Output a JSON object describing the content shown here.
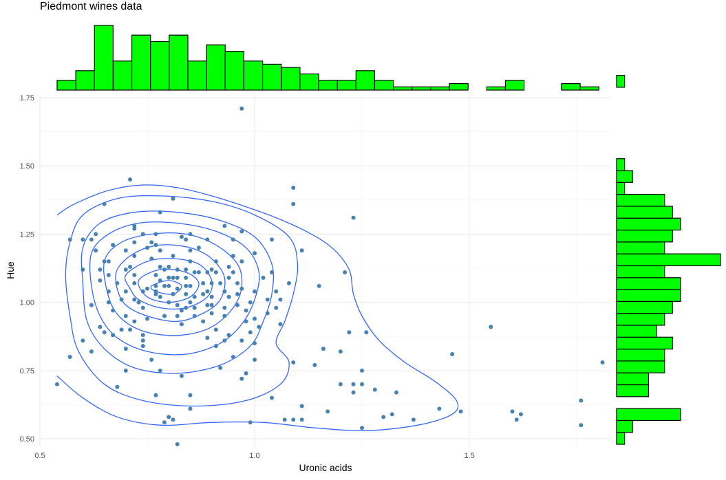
{
  "chart_data": {
    "type": "scatter",
    "title": "Piedmont wines data",
    "xlabel": "Uronic acids",
    "ylabel": "Hue",
    "xlim": [
      0.5,
      1.83
    ],
    "ylim": [
      0.47,
      1.76
    ],
    "x_ticks": [
      "0.5",
      "1.0",
      "1.5"
    ],
    "y_ticks": [
      "0.50",
      "0.75",
      "1.00",
      "1.25",
      "1.50",
      "1.75"
    ],
    "grid": true,
    "point_color": "#4682b4",
    "contour_color": "#3366ff",
    "histogram_fill": "#00ff00",
    "histogram_outline": "#000000",
    "points": [
      [
        0.54,
        0.7
      ],
      [
        0.57,
        0.8
      ],
      [
        0.57,
        1.23
      ],
      [
        0.6,
        1.23
      ],
      [
        0.6,
        0.86
      ],
      [
        0.6,
        1.12
      ],
      [
        0.62,
        0.82
      ],
      [
        0.62,
        1.23
      ],
      [
        0.63,
        1.25
      ],
      [
        0.63,
        1.19
      ],
      [
        0.64,
        1.12
      ],
      [
        0.64,
        0.91
      ],
      [
        0.65,
        1.15
      ],
      [
        0.65,
        1.36
      ],
      [
        0.65,
        0.89
      ],
      [
        0.66,
        1.1
      ],
      [
        0.66,
        1.04
      ],
      [
        0.66,
        1.0
      ],
      [
        0.67,
        1.21
      ],
      [
        0.67,
        0.88
      ],
      [
        0.68,
        0.69
      ],
      [
        0.68,
        1.07
      ],
      [
        0.69,
        0.9
      ],
      [
        0.7,
        1.19
      ],
      [
        0.7,
        1.12
      ],
      [
        0.7,
        1.04
      ],
      [
        0.7,
        0.95
      ],
      [
        0.7,
        0.83
      ],
      [
        0.7,
        0.75
      ],
      [
        0.72,
        1.22
      ],
      [
        0.72,
        1.17
      ],
      [
        0.71,
        1.13
      ],
      [
        0.72,
        1.1
      ],
      [
        0.72,
        1.07
      ],
      [
        0.72,
        1.01
      ],
      [
        0.72,
        0.93
      ],
      [
        0.72,
        1.28
      ],
      [
        0.72,
        1.27
      ],
      [
        0.74,
        1.25
      ],
      [
        0.74,
        1.04
      ],
      [
        0.75,
        1.2
      ],
      [
        0.74,
        0.98
      ],
      [
        0.74,
        0.88
      ],
      [
        0.74,
        0.86
      ],
      [
        0.74,
        0.84
      ],
      [
        0.76,
        1.22
      ],
      [
        0.75,
        1.05
      ],
      [
        0.76,
        0.79
      ],
      [
        0.77,
        1.25
      ],
      [
        0.77,
        1.21
      ],
      [
        0.76,
        1.16
      ],
      [
        0.77,
        1.1
      ],
      [
        0.77,
        1.06
      ],
      [
        0.77,
        1.04
      ],
      [
        0.77,
        1.03
      ],
      [
        0.78,
        1.19
      ],
      [
        0.77,
        0.66
      ],
      [
        0.78,
        1.13
      ],
      [
        0.78,
        1.08
      ],
      [
        0.79,
        1.12
      ],
      [
        0.79,
        1.06
      ],
      [
        0.79,
        0.95
      ],
      [
        0.8,
        1.13
      ],
      [
        0.8,
        1.09
      ],
      [
        0.81,
        1.17
      ],
      [
        0.81,
        1.09
      ],
      [
        0.8,
        1.06
      ],
      [
        0.81,
        1.03
      ],
      [
        0.82,
        1.09
      ],
      [
        0.82,
        1.05
      ],
      [
        0.83,
        1.24
      ],
      [
        0.82,
        1.12
      ],
      [
        0.82,
        0.99
      ],
      [
        0.83,
        0.97
      ],
      [
        0.83,
        0.92
      ],
      [
        0.84,
        1.23
      ],
      [
        0.84,
        1.12
      ],
      [
        0.84,
        1.09
      ],
      [
        0.84,
        1.06
      ],
      [
        0.84,
        1.03
      ],
      [
        0.84,
        0.98
      ],
      [
        0.85,
        1.25
      ],
      [
        0.85,
        1.19
      ],
      [
        0.85,
        1.15
      ],
      [
        0.85,
        1.06
      ],
      [
        0.85,
        1.0
      ],
      [
        0.86,
        1.11
      ],
      [
        0.86,
        1.02
      ],
      [
        0.86,
        0.98
      ],
      [
        0.87,
        1.2
      ],
      [
        0.87,
        1.11
      ],
      [
        0.88,
        1.07
      ],
      [
        0.88,
        1.03
      ],
      [
        0.89,
        1.23
      ],
      [
        0.89,
        1.11
      ],
      [
        0.89,
        1.04
      ],
      [
        0.89,
        0.99
      ],
      [
        0.9,
        1.12
      ],
      [
        0.9,
        1.07
      ],
      [
        0.9,
        1.02
      ],
      [
        0.9,
        0.99
      ],
      [
        0.9,
        0.96
      ],
      [
        0.91,
        1.15
      ],
      [
        0.91,
        1.11
      ],
      [
        0.92,
        1.07
      ],
      [
        0.93,
        1.04
      ],
      [
        0.93,
        0.98
      ],
      [
        0.93,
        0.95
      ],
      [
        0.94,
        1.13
      ],
      [
        0.94,
        1.09
      ],
      [
        0.94,
        1.02
      ],
      [
        0.95,
        1.23
      ],
      [
        0.95,
        1.17
      ],
      [
        0.95,
        1.11
      ],
      [
        0.96,
        1.07
      ],
      [
        0.96,
        1.03
      ],
      [
        0.96,
        0.99
      ],
      [
        0.97,
        1.26
      ],
      [
        0.97,
        1.15
      ],
      [
        0.97,
        1.05
      ],
      [
        0.98,
        0.97
      ],
      [
        0.98,
        0.93
      ],
      [
        0.99,
        0.89
      ],
      [
        0.99,
        1.0
      ],
      [
        1.0,
        1.18
      ],
      [
        1.0,
        1.04
      ],
      [
        1.0,
        0.94
      ],
      [
        1.01,
        0.91
      ],
      [
        1.02,
        1.09
      ],
      [
        1.03,
        1.01
      ],
      [
        1.03,
        0.96
      ],
      [
        1.04,
        1.23
      ],
      [
        1.04,
        1.11
      ],
      [
        1.05,
        1.04
      ],
      [
        1.06,
        1.01
      ],
      [
        1.08,
        1.07
      ],
      [
        0.62,
        0.99
      ],
      [
        0.64,
        1.08
      ],
      [
        0.66,
        1.15
      ],
      [
        0.67,
        0.97
      ],
      [
        0.69,
        1.01
      ],
      [
        0.71,
        0.9
      ],
      [
        0.73,
        1.0
      ],
      [
        0.75,
        0.94
      ],
      [
        0.78,
        1.02
      ],
      [
        0.8,
        1.0
      ],
      [
        0.82,
        0.95
      ],
      [
        0.86,
        0.95
      ],
      [
        0.88,
        0.93
      ],
      [
        0.91,
        0.9
      ],
      [
        0.94,
        0.88
      ],
      [
        0.97,
        0.86
      ],
      [
        1.0,
        0.85
      ],
      [
        0.78,
        0.75
      ],
      [
        0.83,
        0.73
      ],
      [
        0.85,
        0.66
      ],
      [
        0.85,
        0.61
      ],
      [
        0.92,
        0.76
      ],
      [
        0.97,
        0.72
      ],
      [
        0.98,
        0.74
      ],
      [
        1.0,
        0.79
      ],
      [
        1.06,
        0.92
      ],
      [
        1.05,
        0.98
      ],
      [
        1.09,
        0.78
      ],
      [
        1.09,
        0.57
      ],
      [
        1.07,
        0.57
      ],
      [
        1.11,
        0.62
      ],
      [
        1.14,
        0.77
      ],
      [
        1.17,
        0.6
      ],
      [
        1.2,
        0.7
      ],
      [
        1.22,
        0.89
      ],
      [
        1.23,
        0.7
      ],
      [
        1.23,
        0.67
      ],
      [
        1.25,
        0.7
      ],
      [
        1.25,
        0.75
      ],
      [
        1.26,
        0.89
      ],
      [
        1.28,
        0.68
      ],
      [
        1.3,
        0.58
      ],
      [
        1.32,
        0.59
      ],
      [
        1.33,
        0.67
      ],
      [
        1.37,
        0.57
      ],
      [
        1.43,
        0.61
      ],
      [
        1.48,
        0.6
      ],
      [
        1.55,
        0.91
      ],
      [
        1.46,
        0.81
      ],
      [
        1.6,
        0.6
      ],
      [
        1.61,
        0.57
      ],
      [
        1.62,
        0.59
      ],
      [
        1.76,
        0.64
      ],
      [
        1.76,
        0.55
      ],
      [
        1.81,
        0.78
      ],
      [
        1.16,
        0.83
      ],
      [
        1.2,
        0.82
      ],
      [
        1.21,
        1.11
      ],
      [
        1.15,
        1.06
      ],
      [
        1.11,
        1.19
      ],
      [
        1.09,
        1.36
      ],
      [
        1.09,
        1.42
      ],
      [
        1.23,
        1.31
      ],
      [
        0.97,
        1.71
      ],
      [
        0.71,
        1.45
      ],
      [
        0.81,
        1.38
      ],
      [
        0.78,
        1.33
      ],
      [
        0.93,
        1.28
      ],
      [
        1.11,
        0.57
      ],
      [
        1.04,
        0.65
      ],
      [
        0.95,
        0.8
      ],
      [
        0.81,
        0.57
      ],
      [
        0.8,
        0.58
      ],
      [
        0.79,
        0.56
      ],
      [
        0.82,
        0.48
      ],
      [
        0.99,
        0.56
      ],
      [
        1.25,
        0.54
      ],
      [
        0.93,
        0.86
      ],
      [
        0.91,
        0.84
      ],
      [
        0.89,
        0.87
      ]
    ],
    "contours": [
      [
        [
          0.54,
          1.32
        ],
        [
          0.58,
          1.36
        ],
        [
          0.66,
          1.41
        ],
        [
          0.74,
          1.43
        ],
        [
          0.82,
          1.42
        ],
        [
          0.9,
          1.39
        ],
        [
          0.98,
          1.35
        ],
        [
          1.05,
          1.31
        ],
        [
          1.12,
          1.26
        ],
        [
          1.18,
          1.2
        ],
        [
          1.22,
          1.12
        ],
        [
          1.23,
          1.03
        ],
        [
          1.25,
          0.95
        ],
        [
          1.29,
          0.86
        ],
        [
          1.35,
          0.78
        ],
        [
          1.42,
          0.71
        ],
        [
          1.47,
          0.64
        ],
        [
          1.46,
          0.59
        ],
        [
          1.38,
          0.55
        ],
        [
          1.26,
          0.53
        ],
        [
          1.14,
          0.54
        ],
        [
          1.02,
          0.56
        ],
        [
          0.9,
          0.56
        ],
        [
          0.78,
          0.55
        ],
        [
          0.68,
          0.58
        ],
        [
          0.6,
          0.65
        ],
        [
          0.54,
          0.73
        ]
      ],
      [
        [
          0.57,
          1.22
        ],
        [
          0.6,
          1.32
        ],
        [
          0.68,
          1.38
        ],
        [
          0.78,
          1.39
        ],
        [
          0.9,
          1.37
        ],
        [
          1.0,
          1.32
        ],
        [
          1.08,
          1.24
        ],
        [
          1.1,
          1.14
        ],
        [
          1.09,
          1.03
        ],
        [
          1.07,
          0.93
        ],
        [
          1.05,
          0.85
        ],
        [
          1.08,
          0.78
        ],
        [
          1.06,
          0.7
        ],
        [
          0.98,
          0.64
        ],
        [
          0.86,
          0.62
        ],
        [
          0.74,
          0.64
        ],
        [
          0.65,
          0.7
        ],
        [
          0.59,
          0.82
        ],
        [
          0.57,
          0.95
        ],
        [
          0.56,
          1.1
        ]
      ],
      [
        [
          0.6,
          1.2
        ],
        [
          0.64,
          1.29
        ],
        [
          0.72,
          1.33
        ],
        [
          0.82,
          1.33
        ],
        [
          0.92,
          1.3
        ],
        [
          1.0,
          1.24
        ],
        [
          1.04,
          1.14
        ],
        [
          1.04,
          1.03
        ],
        [
          1.02,
          0.93
        ],
        [
          0.99,
          0.84
        ],
        [
          0.92,
          0.77
        ],
        [
          0.82,
          0.74
        ],
        [
          0.72,
          0.76
        ],
        [
          0.65,
          0.83
        ],
        [
          0.61,
          0.93
        ],
        [
          0.6,
          1.07
        ]
      ],
      [
        [
          0.62,
          1.18
        ],
        [
          0.66,
          1.25
        ],
        [
          0.73,
          1.29
        ],
        [
          0.82,
          1.29
        ],
        [
          0.91,
          1.26
        ],
        [
          0.98,
          1.2
        ],
        [
          1.01,
          1.11
        ],
        [
          1.0,
          1.01
        ],
        [
          0.97,
          0.92
        ],
        [
          0.92,
          0.85
        ],
        [
          0.84,
          0.81
        ],
        [
          0.75,
          0.82
        ],
        [
          0.68,
          0.87
        ],
        [
          0.64,
          0.95
        ],
        [
          0.62,
          1.06
        ]
      ],
      [
        [
          0.65,
          1.15
        ],
        [
          0.69,
          1.22
        ],
        [
          0.76,
          1.25
        ],
        [
          0.84,
          1.25
        ],
        [
          0.91,
          1.21
        ],
        [
          0.96,
          1.14
        ],
        [
          0.97,
          1.06
        ],
        [
          0.95,
          0.98
        ],
        [
          0.9,
          0.91
        ],
        [
          0.83,
          0.88
        ],
        [
          0.75,
          0.89
        ],
        [
          0.69,
          0.94
        ],
        [
          0.66,
          1.02
        ]
      ],
      [
        [
          0.68,
          1.12
        ],
        [
          0.72,
          1.18
        ],
        [
          0.78,
          1.21
        ],
        [
          0.85,
          1.2
        ],
        [
          0.9,
          1.16
        ],
        [
          0.93,
          1.09
        ],
        [
          0.92,
          1.01
        ],
        [
          0.88,
          0.96
        ],
        [
          0.82,
          0.93
        ],
        [
          0.75,
          0.95
        ],
        [
          0.7,
          0.99
        ],
        [
          0.68,
          1.05
        ]
      ],
      [
        [
          0.7,
          1.1
        ],
        [
          0.75,
          1.15
        ],
        [
          0.81,
          1.16
        ],
        [
          0.87,
          1.14
        ],
        [
          0.9,
          1.08
        ],
        [
          0.89,
          1.02
        ],
        [
          0.84,
          0.98
        ],
        [
          0.78,
          0.98
        ],
        [
          0.73,
          1.01
        ],
        [
          0.71,
          1.05
        ]
      ],
      [
        [
          0.73,
          1.08
        ],
        [
          0.78,
          1.12
        ],
        [
          0.84,
          1.11
        ],
        [
          0.87,
          1.07
        ],
        [
          0.85,
          1.02
        ],
        [
          0.8,
          1.0
        ],
        [
          0.75,
          1.02
        ]
      ],
      [
        [
          0.76,
          1.06
        ],
        [
          0.8,
          1.08
        ],
        [
          0.83,
          1.06
        ],
        [
          0.81,
          1.03
        ],
        [
          0.77,
          1.04
        ]
      ]
    ],
    "x_histogram": {
      "bin_start": 0.54,
      "bin_width": 0.0435,
      "counts": [
        3,
        6,
        20,
        9,
        17,
        15,
        17,
        9,
        14,
        12,
        9,
        8,
        7,
        5,
        3,
        3,
        6,
        3,
        1,
        1,
        1,
        2,
        0,
        1,
        3,
        0,
        0,
        2,
        1
      ]
    },
    "y_histogram": {
      "bin_start": 0.48,
      "bin_width": 0.0436,
      "counts": [
        1,
        2,
        8,
        0,
        4,
        4,
        6,
        6,
        7,
        5,
        6,
        7,
        8,
        8,
        6,
        13,
        6,
        7,
        8,
        7,
        6,
        1,
        2,
        1,
        0,
        0,
        0,
        0,
        0,
        0,
        1
      ]
    }
  }
}
